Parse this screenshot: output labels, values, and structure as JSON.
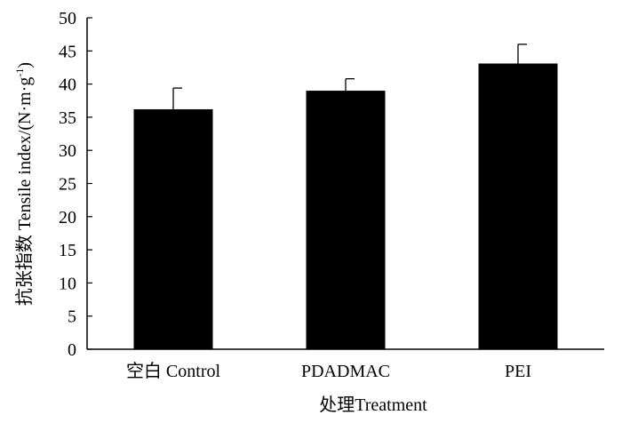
{
  "chart_data": {
    "type": "bar",
    "categories": [
      "空白 Control",
      "PDADMAC",
      "PEI"
    ],
    "values": [
      36.2,
      39.0,
      43.1
    ],
    "errors": [
      3.2,
      1.8,
      2.9
    ],
    "xlabel": "处理Treatment",
    "ylabel_main": "抗张指数 Tensile index/(N·m·g",
    "ylabel_sup": "-1",
    "ylabel_close": ")",
    "ylim": [
      0,
      50
    ],
    "yticks": [
      0,
      5,
      10,
      15,
      20,
      25,
      30,
      35,
      40,
      45,
      50
    ],
    "grid": false,
    "bar_color": "#000000"
  }
}
